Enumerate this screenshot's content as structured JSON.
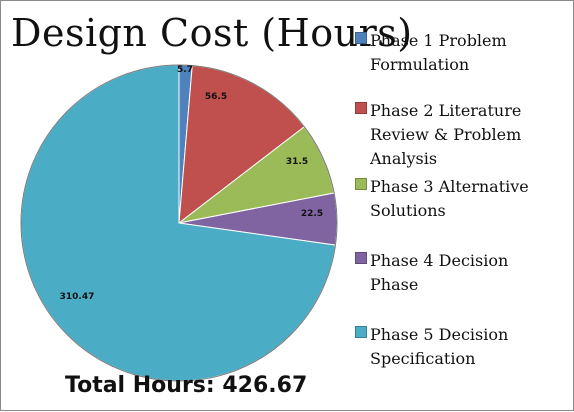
{
  "chart_data": {
    "type": "pie",
    "title": "Design Cost (Hours)",
    "footer": "Total Hours: 426.67",
    "categories": [
      "Phase 1 Problem Formulation",
      "Phase 2 Literature Review & Problem Analysis",
      "Phase 3 Alternative Solutions",
      "Phase 4 Decision Phase",
      "Phase 5 Decision Specification"
    ],
    "values": [
      5.7,
      56.5,
      31.5,
      22.5,
      310.47
    ],
    "value_labels": [
      "5.7",
      "56.5",
      "31.5",
      "22.5",
      "310.47"
    ],
    "colors": [
      "#4f81bd",
      "#c0504d",
      "#9bbb59",
      "#8064a2",
      "#4bacc6"
    ],
    "legend": [
      {
        "lines": [
          "Phase 1 Problem",
          "Formulation"
        ]
      },
      {
        "lines": [
          "Phase 2 Literature",
          "Review & Problem",
          "Analysis"
        ]
      },
      {
        "lines": [
          "Phase 3 Alternative",
          "Solutions"
        ]
      },
      {
        "lines": [
          "Phase 4 Decision",
          "Phase"
        ]
      },
      {
        "lines": [
          "Phase 5 Decision",
          "Specification"
        ]
      }
    ],
    "legend_placement": "right",
    "start_angle_deg": 0,
    "direction": "clockwise"
  }
}
